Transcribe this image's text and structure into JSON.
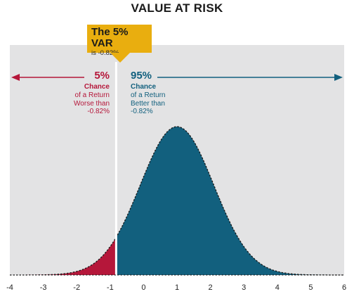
{
  "chart_data": {
    "type": "area",
    "title": "VALUE AT RISK",
    "distribution": {
      "kind": "normal",
      "mean": 1.0,
      "std": 1.1
    },
    "var_threshold": -0.82,
    "xlim": [
      -4,
      6
    ],
    "x_ticks": [
      "-4",
      "-3",
      "-2",
      "-1",
      "0",
      "1",
      "2",
      "3",
      "4",
      "5",
      "6"
    ],
    "regions": [
      {
        "label": "5%",
        "range": [
          -4,
          -0.82
        ],
        "color": "#b5173a"
      },
      {
        "label": "95%",
        "range": [
          -0.82,
          6
        ],
        "color": "#12607e"
      }
    ],
    "grid": false
  },
  "callout": {
    "heading": "The 5% VAR",
    "sub": "is -0.82%"
  },
  "left_annotation": {
    "percent": "5%",
    "line1": "Chance",
    "line2": "of a Return",
    "line3": "Worse than",
    "line4": "-0.82%"
  },
  "right_annotation": {
    "percent": "95%",
    "line1": "Chance",
    "line2": "of a Return",
    "line3": "Better than",
    "line4": "-0.82%"
  },
  "colors": {
    "background_panel": "#e3e3e4",
    "left_fill": "#b5173a",
    "right_fill": "#12607e",
    "callout": "#e9ae0f",
    "axis_text": "#222222"
  }
}
